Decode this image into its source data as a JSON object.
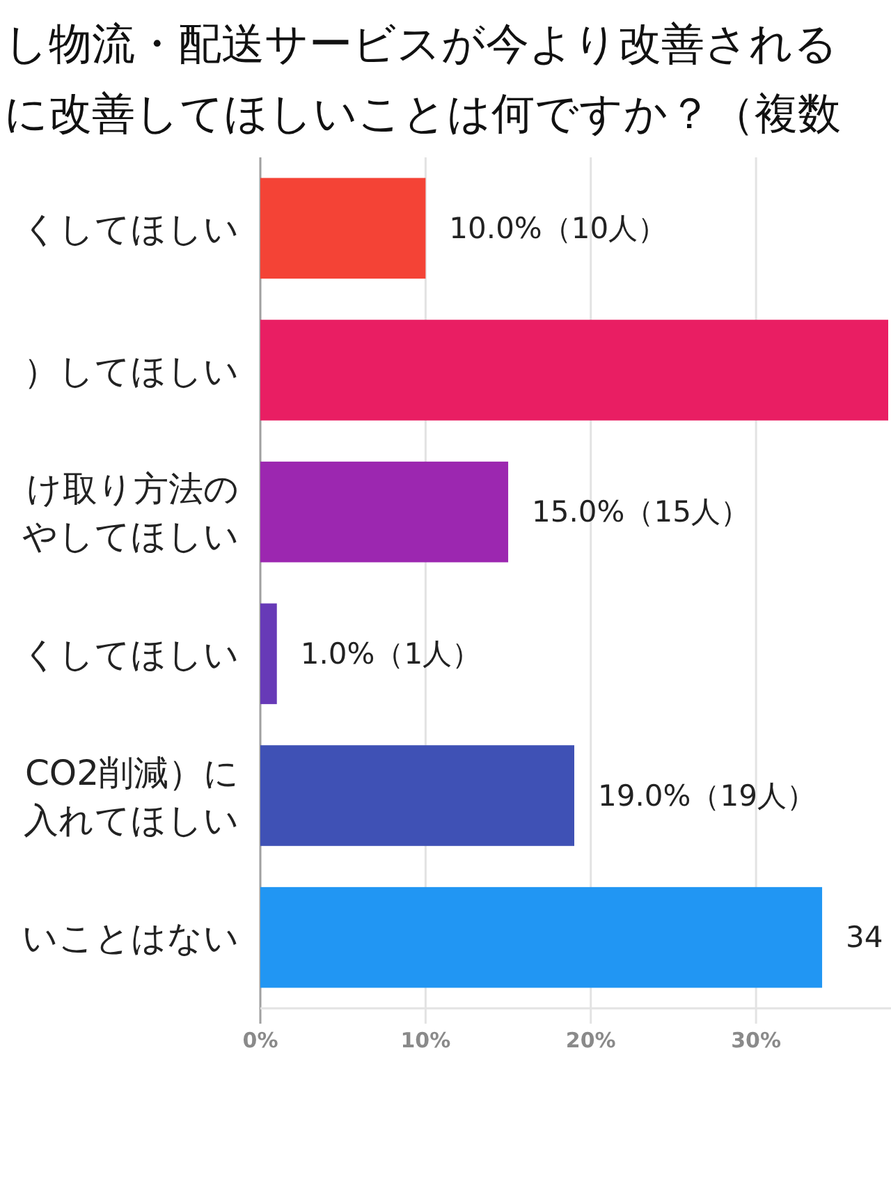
{
  "chart_data": {
    "type": "bar",
    "orientation": "horizontal",
    "title": "し物流・配送サービスが今より改善されるに改善してほしいことは何ですか？（複数",
    "categories": [
      "くしてほしい",
      "）してほしい",
      "け取り方法のやしてほしい",
      "くしてほしい",
      "CO2削減）に入れてほしい",
      "いことはない"
    ],
    "values": [
      10,
      38,
      15,
      1,
      19,
      34
    ],
    "colors": [
      "#f44336",
      "#e91e63",
      "#9c27b0",
      "#673ab7",
      "#3f51b5",
      "#2196f3"
    ],
    "value_labels": [
      "10.0%（10人）",
      null,
      "15.0%（15人）",
      "1.0%（1人）",
      "19.0%（19人）",
      "34"
    ],
    "xlim": [
      0,
      38
    ],
    "xticks": [
      {
        "value": 0,
        "label": "0%"
      },
      {
        "value": 10,
        "label": "10%"
      },
      {
        "value": 20,
        "label": "20%"
      },
      {
        "value": 30,
        "label": "30%"
      }
    ],
    "grid": "x"
  }
}
